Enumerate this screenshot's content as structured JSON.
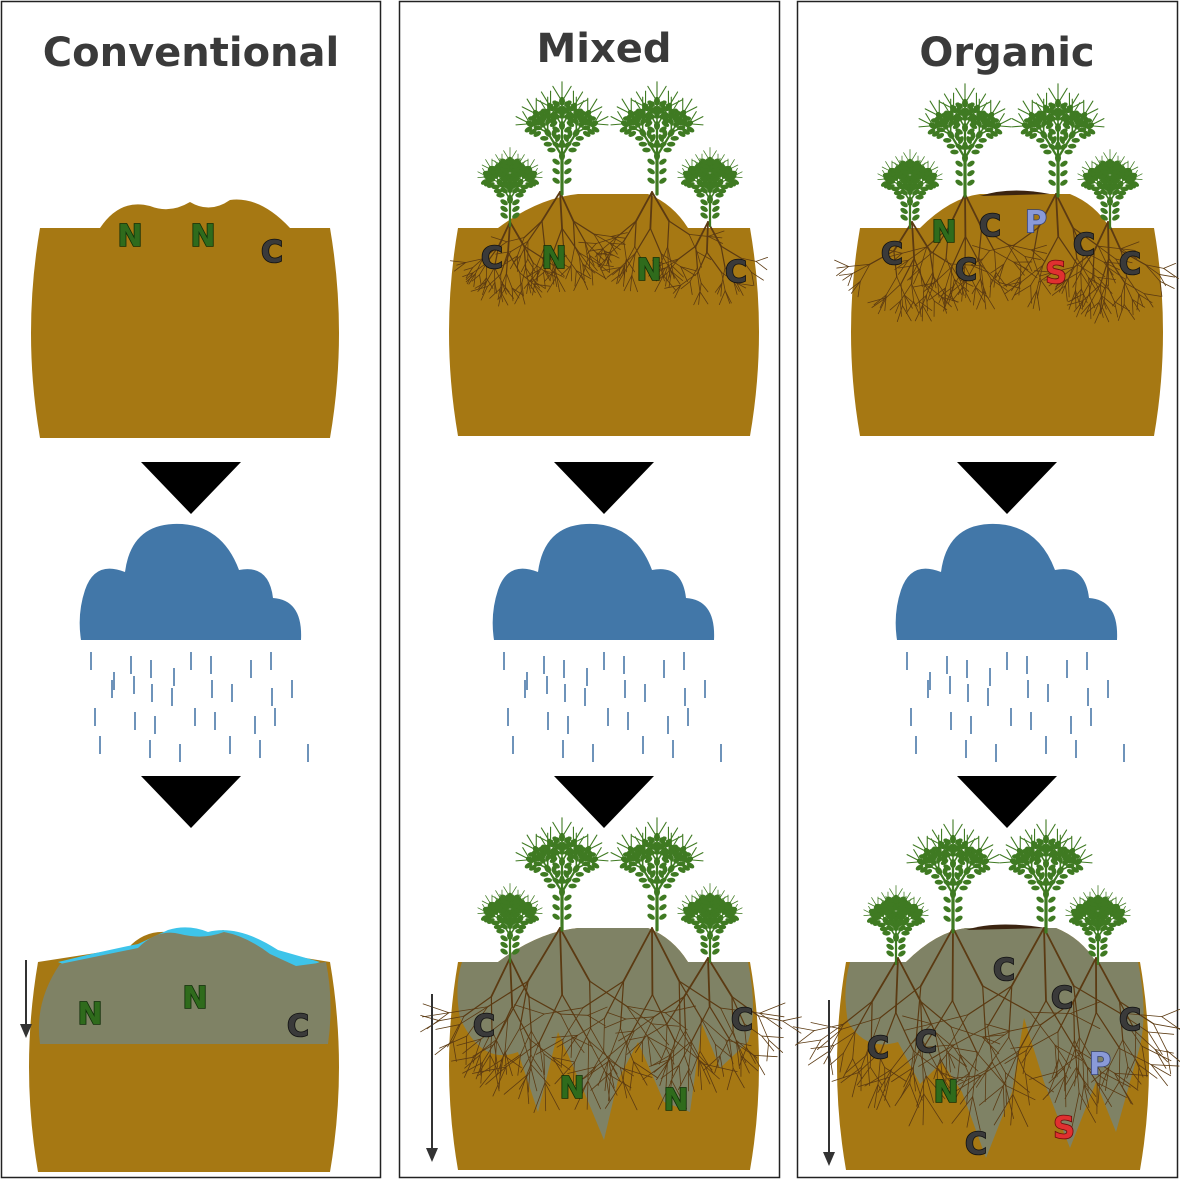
{
  "colors": {
    "soil": "#a67813",
    "soil_dark": "#8a620e",
    "leached": "#7f8265",
    "cloud": "#4277a8",
    "rain": "#4a78a8",
    "plant": "#3f7a22",
    "root": "#5b3a12",
    "water": "#3ec4ea",
    "arrow": "#000000",
    "N": "#2f6b1c",
    "C": "#3a3a3a",
    "P": "#8a9ad8",
    "S": "#e03030"
  },
  "panels": [
    {
      "id": "conventional",
      "title": "Conventional",
      "before_nutrients": [
        {
          "label": "N",
          "kind": "N"
        },
        {
          "label": "N",
          "kind": "N"
        },
        {
          "label": "C",
          "kind": "C"
        }
      ],
      "after_nutrients": [
        {
          "label": "N",
          "kind": "N"
        },
        {
          "label": "N",
          "kind": "N"
        },
        {
          "label": "C",
          "kind": "C"
        }
      ]
    },
    {
      "id": "mixed",
      "title": "Mixed",
      "before_nutrients": [
        {
          "label": "C",
          "kind": "C"
        },
        {
          "label": "N",
          "kind": "N"
        },
        {
          "label": "N",
          "kind": "N"
        },
        {
          "label": "C",
          "kind": "C"
        }
      ],
      "after_nutrients": [
        {
          "label": "C",
          "kind": "C"
        },
        {
          "label": "C",
          "kind": "C"
        },
        {
          "label": "N",
          "kind": "N"
        },
        {
          "label": "N",
          "kind": "N"
        }
      ]
    },
    {
      "id": "organic",
      "title": "Organic",
      "before_nutrients": [
        {
          "label": "C",
          "kind": "C"
        },
        {
          "label": "N",
          "kind": "N"
        },
        {
          "label": "C",
          "kind": "C"
        },
        {
          "label": "P",
          "kind": "P"
        },
        {
          "label": "C",
          "kind": "C"
        },
        {
          "label": "C",
          "kind": "C"
        },
        {
          "label": "S",
          "kind": "S"
        },
        {
          "label": "C",
          "kind": "C"
        }
      ],
      "after_nutrients": [
        {
          "label": "C",
          "kind": "C"
        },
        {
          "label": "C",
          "kind": "C"
        },
        {
          "label": "C",
          "kind": "C"
        },
        {
          "label": "C",
          "kind": "C"
        },
        {
          "label": "C",
          "kind": "C"
        },
        {
          "label": "P",
          "kind": "P"
        },
        {
          "label": "N",
          "kind": "N"
        },
        {
          "label": "S",
          "kind": "S"
        },
        {
          "label": "C",
          "kind": "C"
        }
      ]
    }
  ]
}
